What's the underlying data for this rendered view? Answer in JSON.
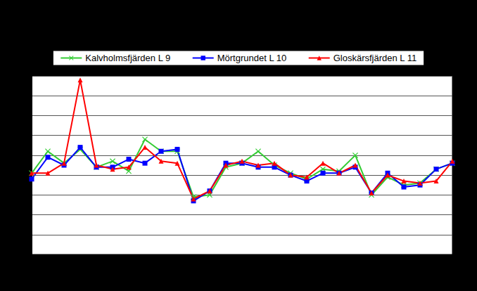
{
  "chart_data": {
    "type": "line",
    "categories": [
      null,
      null,
      null,
      null,
      null,
      null,
      null,
      null,
      null,
      null,
      null,
      null,
      null,
      null,
      null,
      null,
      null,
      null,
      null,
      null,
      null,
      null,
      null,
      null,
      null,
      null,
      null
    ],
    "series": [
      {
        "name": "Kalvholmsfjärden L 9",
        "color": "#33cc33",
        "marker": "x",
        "values": [
          4.1,
          5.2,
          4.6,
          5.3,
          4.4,
          4.7,
          4.2,
          5.8,
          5.2,
          5.2,
          2.9,
          3.0,
          4.4,
          4.6,
          5.2,
          4.5,
          4.1,
          3.8,
          4.3,
          4.2,
          5.0,
          3.0,
          3.9,
          3.5,
          3.6,
          4.3,
          4.6
        ]
      },
      {
        "name": "Mörtgrundet L 10",
        "color": "#0000ff",
        "marker": "square",
        "values": [
          3.8,
          4.9,
          4.5,
          5.4,
          4.4,
          4.4,
          4.8,
          4.6,
          5.2,
          5.3,
          2.7,
          3.2,
          4.6,
          4.6,
          4.4,
          4.4,
          4.0,
          3.7,
          4.1,
          4.1,
          4.4,
          3.1,
          4.1,
          3.4,
          3.5,
          4.3,
          4.6
        ]
      },
      {
        "name": "Gloskärsfjärden L 11",
        "color": "#ff0000",
        "marker": "triangle",
        "values": [
          4.1,
          4.1,
          4.6,
          8.8,
          4.5,
          4.3,
          4.4,
          5.4,
          4.7,
          4.6,
          2.8,
          3.2,
          4.5,
          4.7,
          4.5,
          4.6,
          4.0,
          3.9,
          4.6,
          4.1,
          4.5,
          3.1,
          4.0,
          3.7,
          3.6,
          3.7,
          4.7
        ]
      }
    ],
    "ylim": [
      0,
      9
    ],
    "yticks": [
      0,
      1,
      2,
      3,
      4,
      5,
      6,
      7,
      8,
      9
    ],
    "grid": true,
    "legend": "top",
    "tick_labels": false
  }
}
